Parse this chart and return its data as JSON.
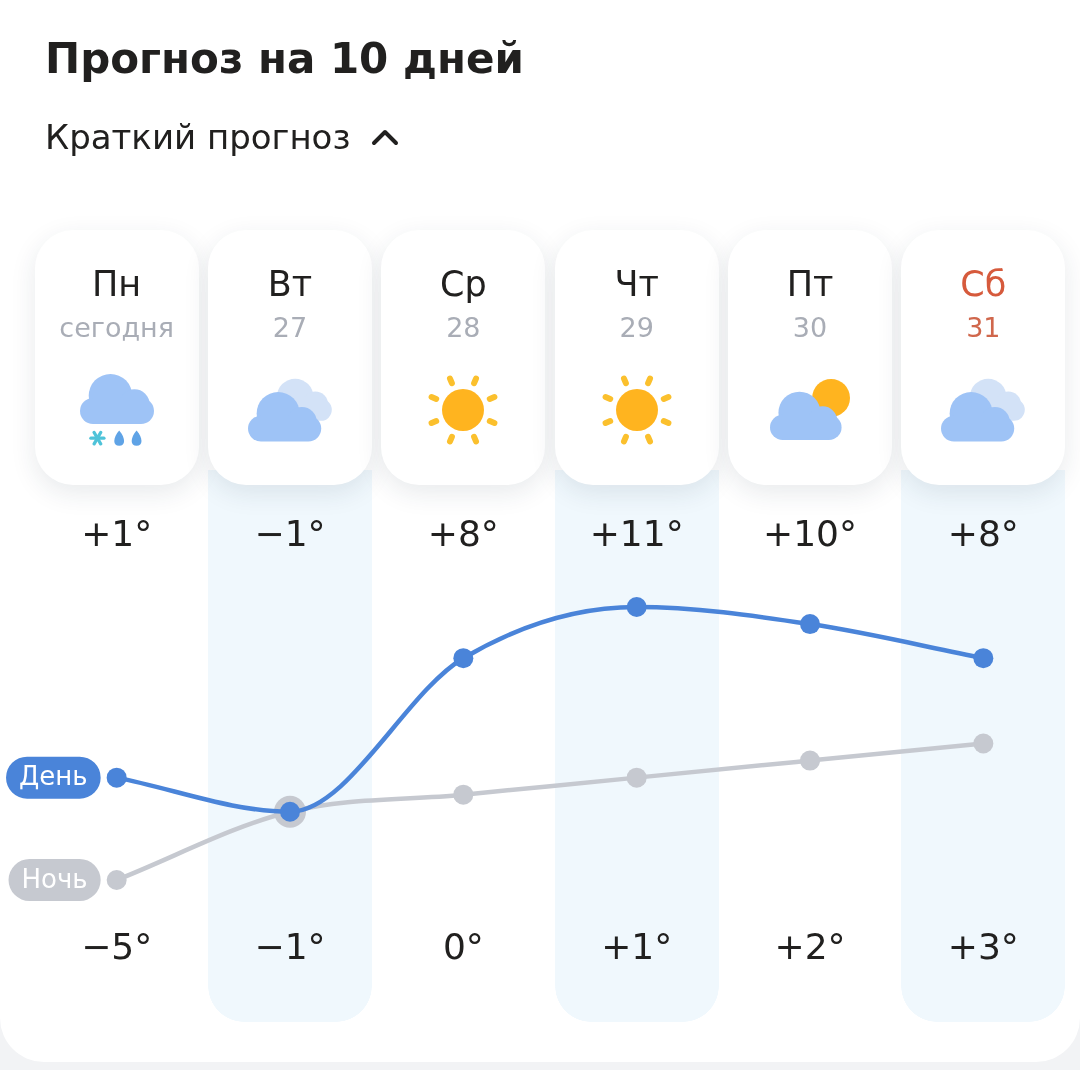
{
  "chart_data": {
    "type": "line",
    "title": "Прогноз на 10 дней",
    "subtitle": "Краткий прогноз",
    "categories": [
      "Пн\nсегодня",
      "Вт\n27",
      "Ср\n28",
      "Чт\n29",
      "Пт\n30",
      "Сб\n31"
    ],
    "series": [
      {
        "name": "День",
        "color": "#4a84d9",
        "values": [
          1,
          -1,
          8,
          11,
          10,
          8
        ],
        "value_labels": [
          "+1°",
          "−1°",
          "+8°",
          "+11°",
          "+10°",
          "+8°"
        ]
      },
      {
        "name": "Ночь",
        "color": "#c6c9d0",
        "values": [
          -5,
          -1,
          0,
          1,
          2,
          3
        ],
        "value_labels": [
          "−5°",
          "−1°",
          "0°",
          "+1°",
          "+2°",
          "+3°"
        ]
      }
    ],
    "marker": "circle",
    "line_style": "solid"
  }
}
